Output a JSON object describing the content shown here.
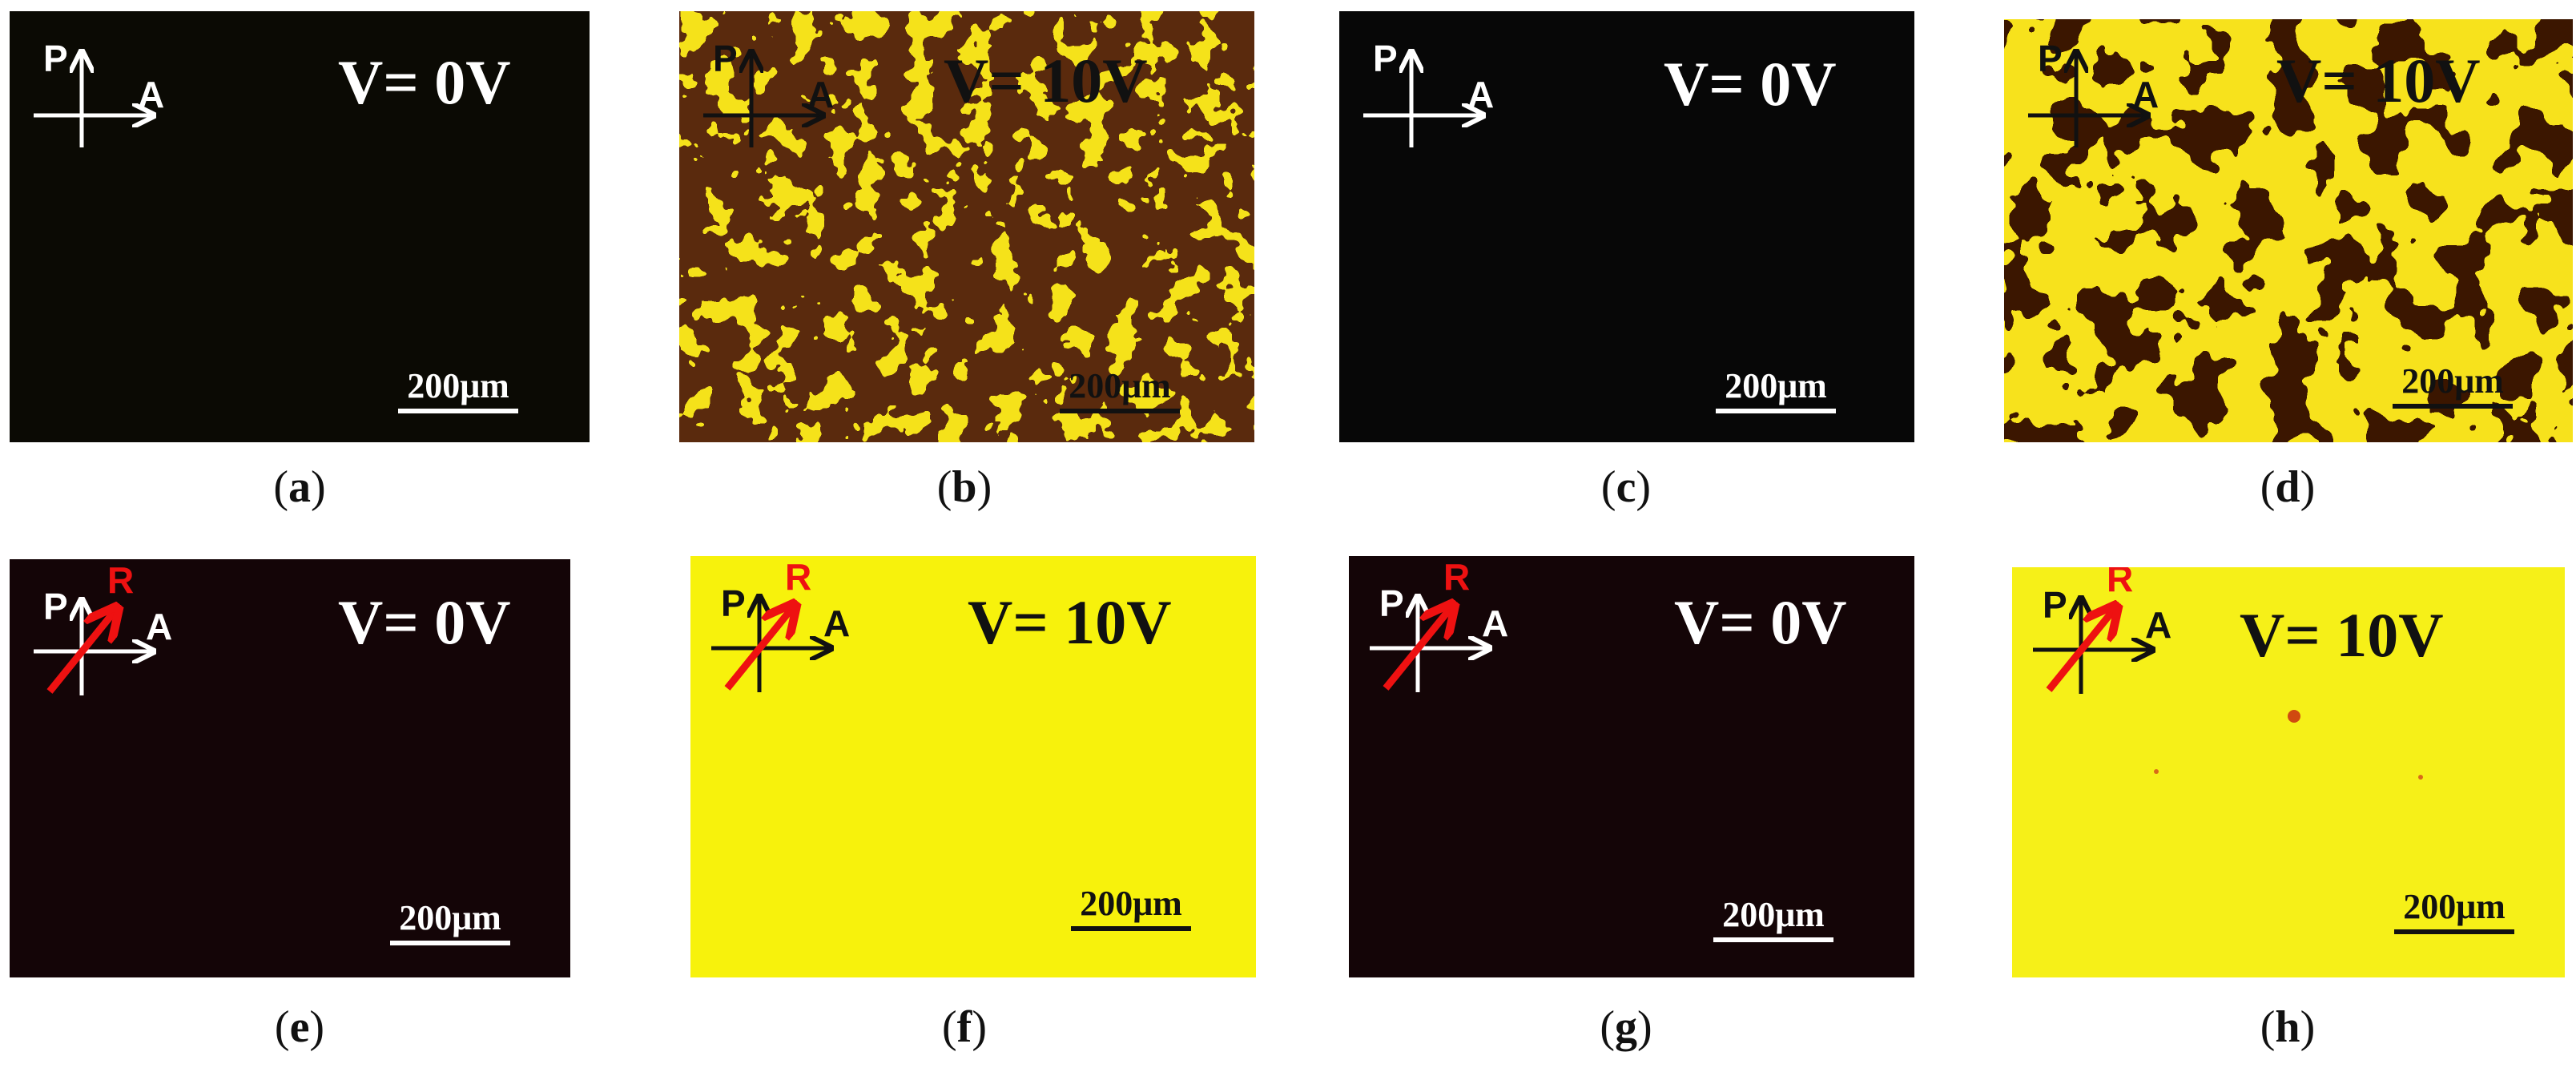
{
  "labels": {
    "polarizer": "P",
    "analyzer": "A",
    "rubbing": "R"
  },
  "scale_bar": "200μm",
  "colors": {
    "dark": "#0b0a04",
    "dark_rubbed": "#130507",
    "yellow": "#f5ef10",
    "rubbing": "#ee1111"
  },
  "panels": [
    {
      "id": "a",
      "caption": "a",
      "voltage": "V= 0V"
    },
    {
      "id": "b",
      "caption": "b",
      "voltage": "V= 10V"
    },
    {
      "id": "c",
      "caption": "c",
      "voltage": "V= 0V"
    },
    {
      "id": "d",
      "caption": "d",
      "voltage": "V= 10V"
    },
    {
      "id": "e",
      "caption": "e",
      "voltage": "V= 0V"
    },
    {
      "id": "f",
      "caption": "f",
      "voltage": "V= 10V"
    },
    {
      "id": "g",
      "caption": "g",
      "voltage": "V= 0V"
    },
    {
      "id": "h",
      "caption": "h",
      "voltage": "V= 10V"
    }
  ]
}
